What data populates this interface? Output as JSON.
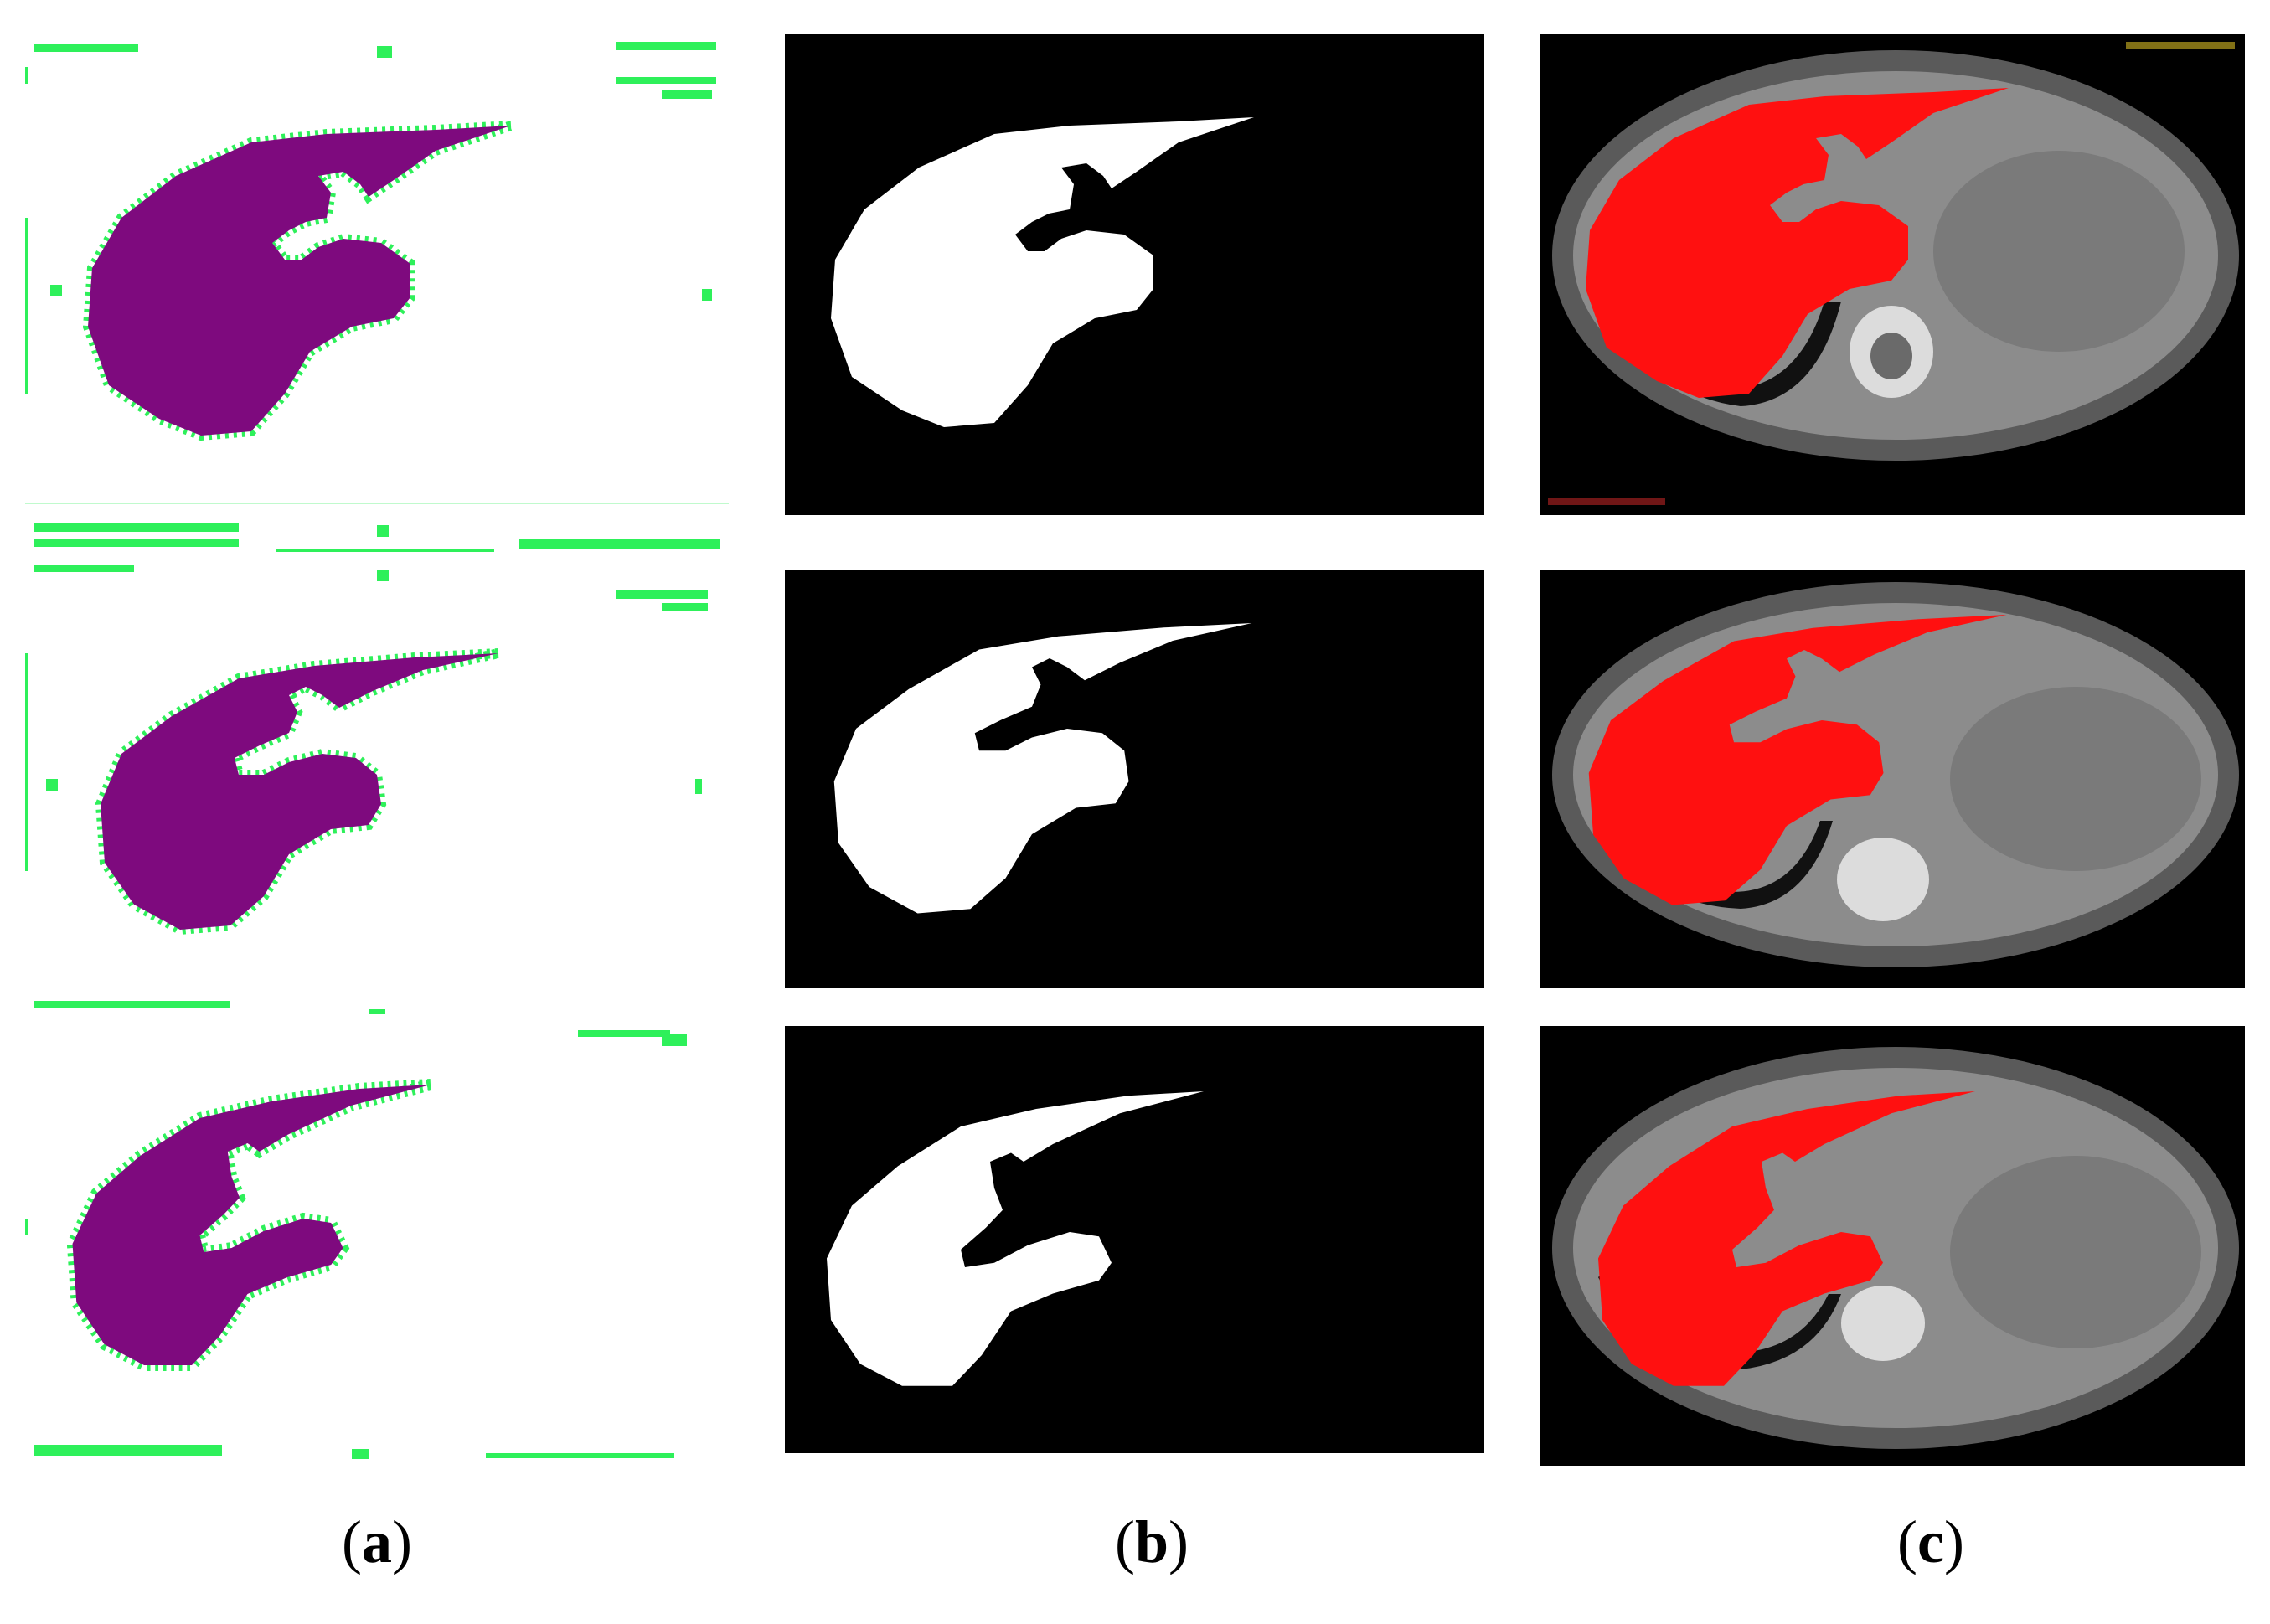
{
  "figure": {
    "captions": [
      {
        "open": "(",
        "letter": "a",
        "close": ")"
      },
      {
        "open": "(",
        "letter": "b",
        "close": ")"
      },
      {
        "open": "(",
        "letter": "c",
        "close": ")"
      }
    ]
  },
  "colors": {
    "liver_overlay_a": "#7e0a7e",
    "boundary_noise_a": "#2ef05a",
    "mask_b": "#ffffff",
    "mask_background_b": "#000000",
    "liver_overlay_c": "#ff1010",
    "ct_tissue": "#8c8c8c"
  }
}
